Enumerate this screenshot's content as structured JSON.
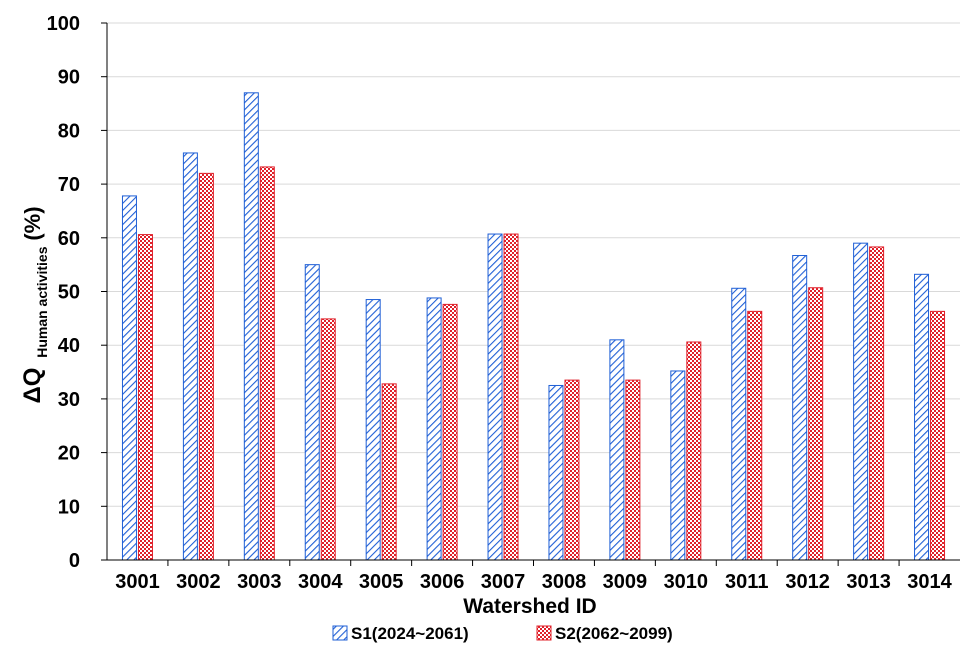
{
  "chart_data": {
    "type": "bar",
    "categories": [
      "3001",
      "3002",
      "3003",
      "3004",
      "3005",
      "3006",
      "3007",
      "3008",
      "3009",
      "3010",
      "3011",
      "3012",
      "3013",
      "3014"
    ],
    "series": [
      {
        "name": "S1(2024~2061)",
        "color": "#1f5fd6",
        "pattern": "diagonal-hatch",
        "values": [
          67.8,
          75.8,
          87.0,
          55.0,
          48.5,
          48.8,
          60.7,
          32.5,
          41.0,
          35.2,
          50.6,
          56.7,
          59.0,
          53.2
        ]
      },
      {
        "name": "S2(2062~2099)",
        "color": "#e0202a",
        "pattern": "checkerboard",
        "values": [
          60.6,
          72.0,
          73.2,
          44.9,
          32.8,
          47.6,
          60.7,
          33.5,
          33.5,
          40.6,
          46.3,
          50.7,
          58.3,
          46.3
        ]
      }
    ],
    "ylim": [
      0,
      100
    ],
    "yticks": [
      0,
      10,
      20,
      30,
      40,
      50,
      60,
      70,
      80,
      90,
      100
    ],
    "ylabel_main": "ΔQ",
    "ylabel_sub": "Human activities",
    "ylabel_unit": "(%)",
    "xlabel": "Watershed ID",
    "grid": true,
    "legend_position": "bottom"
  }
}
